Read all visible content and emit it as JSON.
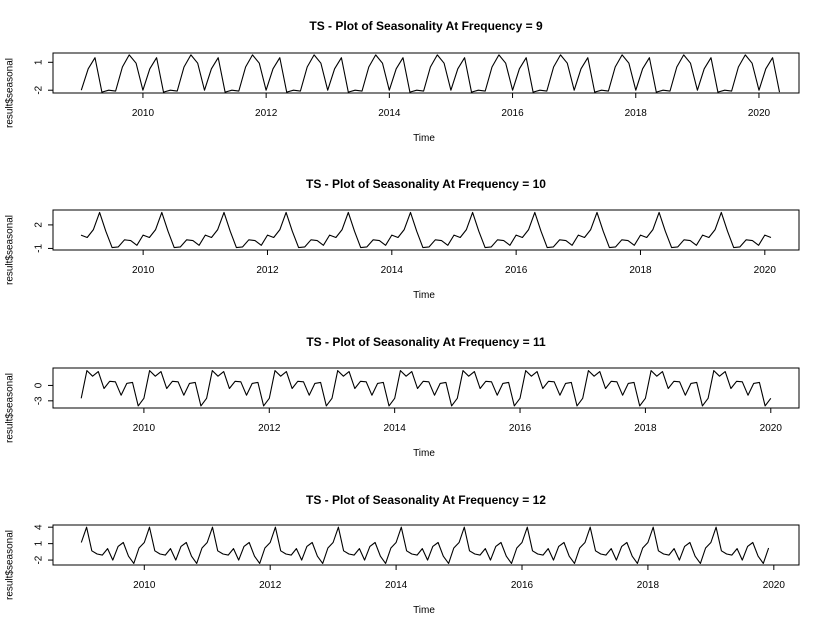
{
  "chart_data": [
    {
      "type": "line",
      "title": "TS - Plot of Seasonality At Frequency = 9",
      "xlabel": "Time",
      "ylabel": "result$seasonal",
      "frequency": 9,
      "start": 2009,
      "n": 103,
      "pattern": [
        -2.0,
        0.3,
        1.5,
        -2.2,
        -2.0,
        -2.1,
        0.5,
        1.8,
        0.9
      ],
      "xlim": [
        2008.54,
        2020.65
      ],
      "ylim": [
        -2.3,
        2.0
      ],
      "xticks": [
        2010,
        2012,
        2014,
        2016,
        2018,
        2020
      ],
      "yticks": [
        -2,
        1
      ],
      "yticklabels": [
        "-2",
        "1"
      ]
    },
    {
      "type": "line",
      "title": "TS - Plot of Seasonality At Frequency = 10",
      "xlabel": "Time",
      "ylabel": "result$seasonal",
      "frequency": 10,
      "start": 2009,
      "n": 112,
      "pattern": [
        0.7,
        0.4,
        1.4,
        3.6,
        1.2,
        -0.9,
        -0.8,
        0.1,
        0.0,
        -0.6
      ],
      "xlim": [
        2008.55,
        2020.55
      ],
      "ylim": [
        -1.2,
        3.9
      ],
      "xticks": [
        2010,
        2012,
        2014,
        2016,
        2018,
        2020
      ],
      "yticks": [
        -1,
        2
      ],
      "yticklabels": [
        "-1",
        "2"
      ]
    },
    {
      "type": "line",
      "title": "TS - Plot of Seasonality At Frequency = 11",
      "xlabel": "Time",
      "ylabel": "result$seasonal",
      "frequency": 11,
      "start": 2009,
      "n": 122,
      "pattern": [
        -2.5,
        2.9,
        1.8,
        2.7,
        -0.6,
        0.8,
        0.7,
        -1.9,
        0.4,
        0.6,
        -4.0
      ],
      "xlim": [
        2008.55,
        2020.45
      ],
      "ylim": [
        -4.4,
        3.4
      ],
      "xticks": [
        2010,
        2012,
        2014,
        2016,
        2018,
        2020
      ],
      "yticks": [
        -3,
        0
      ],
      "yticklabels": [
        "-3",
        "0"
      ]
    },
    {
      "type": "line",
      "title": "TS - Plot of Seasonality At Frequency = 12",
      "xlabel": "Time",
      "ylabel": "result$seasonal",
      "frequency": 12,
      "start": 2009,
      "n": 132,
      "pattern": [
        1.2,
        4.0,
        -0.3,
        -0.9,
        -1.1,
        0.1,
        -2.0,
        0.5,
        1.2,
        -1.3,
        -2.6,
        0.2
      ],
      "xlim": [
        2008.55,
        2020.4
      ],
      "ylim": [
        -2.9,
        4.4
      ],
      "xticks": [
        2010,
        2012,
        2014,
        2016,
        2018,
        2020
      ],
      "yticks": [
        -2,
        1,
        4
      ],
      "yticklabels": [
        "-2",
        "1",
        "4"
      ]
    }
  ]
}
